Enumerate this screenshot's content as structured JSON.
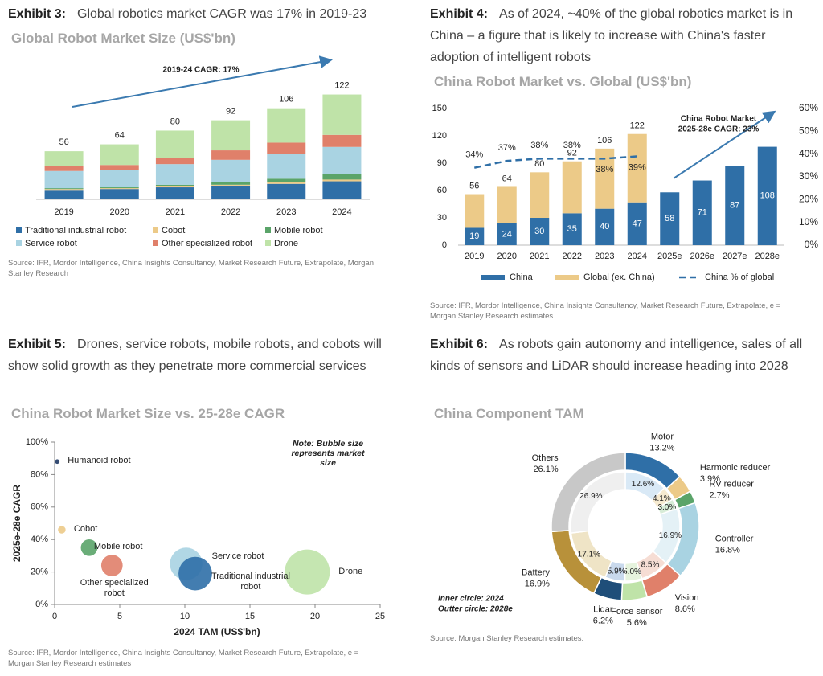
{
  "chart_data": [
    {
      "type": "stacked_bar",
      "exhibit": "Exhibit 3:",
      "caption": "Global robotics market CAGR was 17% in 2019-23",
      "title": "Global Robot Market Size (US$'bn)",
      "categories": [
        "2019",
        "2020",
        "2021",
        "2022",
        "2023",
        "2024"
      ],
      "series": [
        {
          "name": "Traditional industrial robot",
          "color": "#2f6fa7",
          "values": [
            11,
            12,
            14,
            16,
            18,
            21
          ]
        },
        {
          "name": "Cobot",
          "color": "#ecca88",
          "values": [
            1,
            1,
            1,
            1,
            2,
            2
          ]
        },
        {
          "name": "Mobile robot",
          "color": "#5aa469",
          "values": [
            1,
            1,
            2,
            3,
            4,
            6
          ]
        },
        {
          "name": "Service robot",
          "color": "#a9d3e2",
          "values": [
            20,
            20,
            24,
            26,
            29,
            32
          ]
        },
        {
          "name": "Other specialized robot",
          "color": "#e0806a",
          "values": [
            6,
            6,
            7,
            11,
            13,
            14
          ]
        },
        {
          "name": "Drone",
          "color": "#bfe3a8",
          "values": [
            17,
            24,
            32,
            35,
            40,
            47
          ]
        }
      ],
      "totals": [
        56,
        64,
        80,
        92,
        106,
        122
      ],
      "ylim": [
        0,
        130
      ],
      "annotation": "2019-24 CAGR: 17%",
      "source": "Source: IFR, Mordor Intelligence, China Insights Consultancy, Market Research Future, Extrapolate, Morgan Stanley Research"
    },
    {
      "type": "bar_line",
      "exhibit": "Exhibit 4:",
      "caption": "As of 2024, ~40% of the global robotics market is in China – a figure that is likely to increase with China's faster adoption of intelligent robots",
      "title": "China Robot Market vs. Global (US$'bn)",
      "categories": [
        "2019",
        "2020",
        "2021",
        "2022",
        "2023",
        "2024",
        "2025e",
        "2026e",
        "2027e",
        "2028e"
      ],
      "series": [
        {
          "name": "China",
          "color": "#2f6fa7",
          "values": [
            19,
            24,
            30,
            35,
            40,
            47,
            58,
            71,
            87,
            108
          ]
        },
        {
          "name": "Global (ex. China)",
          "color": "#ecca88",
          "values": [
            37,
            40,
            50,
            57,
            66,
            75,
            null,
            null,
            null,
            null
          ]
        },
        {
          "name": "China % of global",
          "color": "#2f6fa7",
          "axis": "y2",
          "values": [
            34,
            37,
            38,
            38,
            38,
            39,
            null,
            null,
            null,
            null
          ],
          "value_labels": [
            "34%",
            "37%",
            "38%",
            "38%",
            "38%",
            "39%",
            null,
            null,
            null,
            null
          ]
        }
      ],
      "totals": [
        56,
        64,
        80,
        92,
        106,
        122,
        null,
        null,
        null,
        null
      ],
      "ylim": [
        0,
        150
      ],
      "yticks": [
        0,
        30,
        60,
        90,
        120,
        150
      ],
      "y2lim": [
        0,
        60
      ],
      "y2ticks": [
        {
          "value": 0,
          "label": "0%"
        },
        {
          "value": 10,
          "label": "10%"
        },
        {
          "value": 20,
          "label": "20%"
        },
        {
          "value": 30,
          "label": "30%"
        },
        {
          "value": 40,
          "label": "40%"
        },
        {
          "value": 50,
          "label": "50%"
        },
        {
          "value": 60,
          "label": "60%"
        }
      ],
      "annotation": [
        "China Robot Market",
        "2025-28e CAGR: 23%"
      ],
      "source": "Source: IFR, Mordor Intelligence, China Insights Consultancy, Market Research Future, Extrapolate, e = Morgan Stanley Research estimates"
    },
    {
      "type": "bubble",
      "exhibit": "Exhibit 5:",
      "caption": "Drones, service robots, mobile robots, and cobots will show solid growth as they penetrate more commercial services",
      "title": "China Robot Market Size vs. 25-28e CAGR",
      "categories": [
        "Humanoid robot",
        "Cobot",
        "Mobile robot",
        "Other specialized robot",
        "Service robot",
        "Traditional industrial robot",
        "Drone"
      ],
      "x": [
        0.2,
        0.55,
        2.65,
        4.4,
        10.1,
        10.8,
        19.4
      ],
      "y": [
        88,
        46,
        35,
        24,
        25,
        19,
        20
      ],
      "colors": [
        "#1f3864",
        "#ecca88",
        "#5aa469",
        "#e0806a",
        "#a9d3e2",
        "#2f6fa7",
        "#bfe3a8"
      ],
      "xlim": [
        0,
        25
      ],
      "xticks": [
        0,
        5,
        10,
        15,
        20,
        25
      ],
      "ylim": [
        0,
        100
      ],
      "yticks": [
        {
          "value": 0,
          "label": "0%"
        },
        {
          "value": 20,
          "label": "20%"
        },
        {
          "value": 40,
          "label": "40%"
        },
        {
          "value": 60,
          "label": "60%"
        },
        {
          "value": 80,
          "label": "80%"
        },
        {
          "value": 100,
          "label": "100%"
        }
      ],
      "xlabel": "2024 TAM (US$'bn)",
      "ylabel": "2025e-28e CAGR",
      "note": [
        "Note: Bubble size",
        "represents market",
        "size"
      ],
      "source": "Source: IFR, Mordor Intelligence, China Insights Consultancy, Market Research Future, Extrapolate, e = Morgan Stanley Research estimates"
    },
    {
      "type": "donut",
      "exhibit": "Exhibit 6:",
      "caption": "As robots gain autonomy and intelligence, sales of all kinds of sensors and LiDAR should increase heading into 2028",
      "title": "China Component TAM",
      "categories": [
        "Motor",
        "Harmonic reducer",
        "RV reducer",
        "Controller",
        "Vision",
        "Force sensor",
        "Lidar",
        "Battery",
        "Others"
      ],
      "inner": {
        "label": "Inner circle: 2024",
        "values": [
          12.6,
          4.1,
          3.0,
          16.9,
          8.5,
          5.0,
          5.9,
          17.1,
          26.9
        ],
        "value_labels": [
          "12.6%",
          "4.1%",
          "3.0%",
          "16.9%",
          "8.5%",
          "5.0%",
          "5.9%",
          "17.1%",
          "26.9%"
        ],
        "colors": [
          "#d9e9f6",
          "#f6ead0",
          "#d7ecd7",
          "#e4f1f6",
          "#f6ddd4",
          "#e6f3dd",
          "#c9d9ec",
          "#efe4c6",
          "#efefef"
        ]
      },
      "outer": {
        "label": "Outter circle: 2028e",
        "values": [
          13.2,
          3.9,
          2.7,
          16.8,
          8.6,
          5.6,
          6.2,
          16.9,
          26.1
        ],
        "value_labels": [
          "13.2%",
          "3.9%",
          "2.7%",
          "16.8%",
          "8.6%",
          "5.6%",
          "6.2%",
          "16.9%",
          "26.1%"
        ],
        "colors": [
          "#2f6fa7",
          "#ecca88",
          "#5aa469",
          "#a9d3e2",
          "#e0806a",
          "#bfe3a8",
          "#1f4e79",
          "#b8913a",
          "#c8c8c8"
        ]
      },
      "source": "Source: Morgan Stanley Research estimates."
    }
  ]
}
